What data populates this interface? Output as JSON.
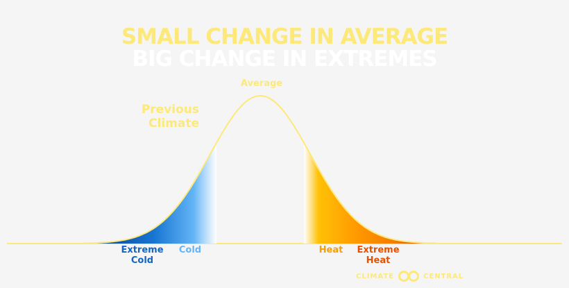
{
  "title": {
    "line1": "SMALL CHANGE IN AVERAGE",
    "line2": "BIG CHANGE IN EXTREMES"
  },
  "labels": {
    "average": "Average",
    "previous_climate": [
      "Previous",
      "Climate"
    ],
    "extreme_cold": [
      "Extreme",
      "Cold"
    ],
    "cold": "Cold",
    "heat": "Heat",
    "extreme_heat": [
      "Extreme",
      "Heat"
    ]
  },
  "logo": {
    "left": "CLIMATE",
    "right": "CENTRAL",
    "icon": "climate-central-logo-icon"
  },
  "colors": {
    "background": "#f5f5f5",
    "curve": "#fde97a",
    "title_line1": "#fde97a",
    "title_line2": "#ffffff",
    "extreme_cold": "#1565c0",
    "cold": "#64b5f6",
    "heat": "#f59e0b",
    "extreme_heat": "#e65100"
  }
}
